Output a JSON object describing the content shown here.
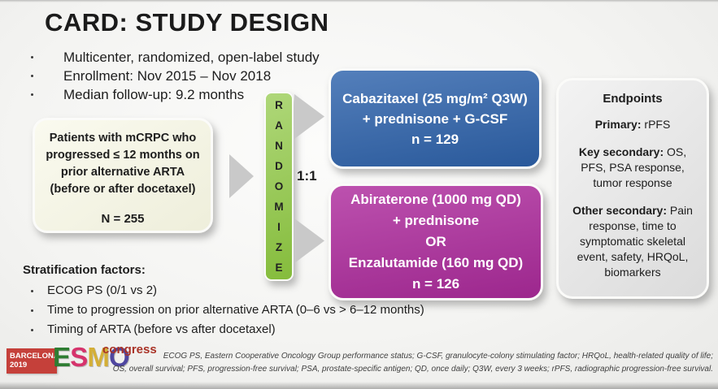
{
  "title": "CARD: STUDY DESIGN",
  "overview_bullets": [
    "Multicenter, randomized, open-label study",
    "Enrollment: Nov 2015 – Nov 2018",
    "Median follow-up: 9.2 months"
  ],
  "patient_box": {
    "lines": [
      "Patients with mCRPC who",
      "progressed ≤ 12 months on",
      "prior alternative ARTA",
      "(before or after docetaxel)"
    ],
    "n_label": "N = 255"
  },
  "randomize": {
    "letters": [
      "R",
      "A",
      "N",
      "D",
      "O",
      "M",
      "I",
      "Z",
      "E"
    ],
    "ratio_label": "1:1"
  },
  "arms": {
    "cabazitaxel": {
      "color": "#2E63AC",
      "lines": [
        "Cabazitaxel (25 mg/m² Q3W)",
        "+ prednisone + G-CSF",
        "n = 129"
      ]
    },
    "abi_enza": {
      "color": "#AE2B9D",
      "lines": [
        "Abiraterone (1000 mg QD)",
        "+ prednisone",
        "OR",
        "Enzalutamide (160 mg QD)",
        "n = 126"
      ]
    }
  },
  "endpoints": {
    "title": "Endpoints",
    "sections": [
      {
        "label": "Primary:",
        "text": " rPFS"
      },
      {
        "label": "Key secondary:",
        "text": " OS, PFS, PSA response, tumor response"
      },
      {
        "label": "Other secondary:",
        "text": " Pain response, time to symptomatic skeletal event, safety, HRQoL, biomarkers"
      }
    ]
  },
  "stratification": {
    "heading": "Stratification factors:",
    "items": [
      "ECOG PS (0/1 vs 2)",
      "Time to progression on prior alternative ARTA (0–6 vs > 6–12 months)",
      "Timing of ARTA (before vs after docetaxel)"
    ]
  },
  "footer": {
    "logo": {
      "venue_line1": "BARCELONA",
      "venue_line2": "2019",
      "letters": [
        {
          "char": "E",
          "color": "#2E7D32"
        },
        {
          "char": "S",
          "color": "#D6336C"
        },
        {
          "char": "M",
          "color": "#D4AF37"
        },
        {
          "char": "O",
          "color": "#4F46A0"
        }
      ],
      "congress": "congress"
    },
    "abbreviations": [
      "ECOG PS, Eastern Cooperative Oncology Group performance status; G-CSF, granulocyte-colony stimulating factor; HRQoL, health-related quality of life;",
      "OS, overall survival; PFS, progression-free survival; PSA, prostate-specific antigen; QD, once daily; Q3W, every 3 weeks; rPFS, radiographic progression-free survival."
    ]
  },
  "colors": {
    "patient_box": "#F6F6E2",
    "randomize_box": "#8CC63F",
    "endpoints_box": "#E4E4E4",
    "arrow": "#C9C9C9",
    "logo_red": "#C5403A",
    "logo_congress": "#A93226"
  }
}
